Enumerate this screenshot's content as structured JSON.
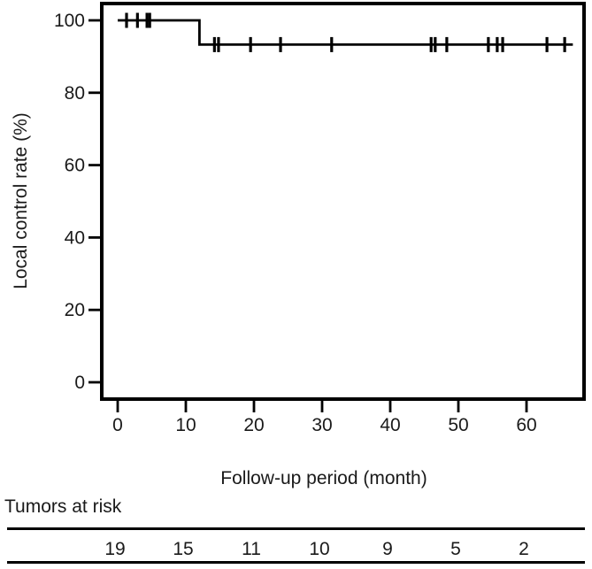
{
  "chart_data": {
    "type": "line",
    "subtype": "kaplan-meier-step",
    "title": "",
    "xlabel": "Follow-up period (month)",
    "ylabel": "Local control rate (%)",
    "x_ticks": [
      0,
      10,
      20,
      30,
      40,
      50,
      60
    ],
    "y_ticks": [
      0,
      20,
      40,
      60,
      80,
      100
    ],
    "xlim": [
      -2.5,
      68.5
    ],
    "ylim": [
      -3,
      103
    ],
    "grid": false,
    "legend": "none",
    "series": [
      {
        "name": "Local control rate",
        "color": "#000000",
        "step_points": [
          [
            0,
            100
          ],
          [
            12,
            100
          ],
          [
            12,
            93.3
          ],
          [
            66.8,
            93.3
          ]
        ]
      }
    ],
    "censor_marks": {
      "at_100_pct_months": [
        1.3,
        2.9,
        4.3,
        4.7
      ],
      "at_93_pct_months": [
        14.2,
        14.8,
        19.5,
        23.9,
        31.4,
        46.0,
        46.6,
        48.3,
        54.4,
        55.7,
        56.5,
        63.0,
        65.6
      ]
    },
    "at_risk": {
      "label": "Tumors at risk",
      "times": [
        0,
        10,
        20,
        30,
        40,
        50,
        60
      ],
      "counts": [
        19,
        15,
        11,
        10,
        9,
        5,
        2
      ]
    },
    "colors": {
      "line": "#000000",
      "text": "#1a1a1a",
      "background": "#ffffff"
    }
  }
}
